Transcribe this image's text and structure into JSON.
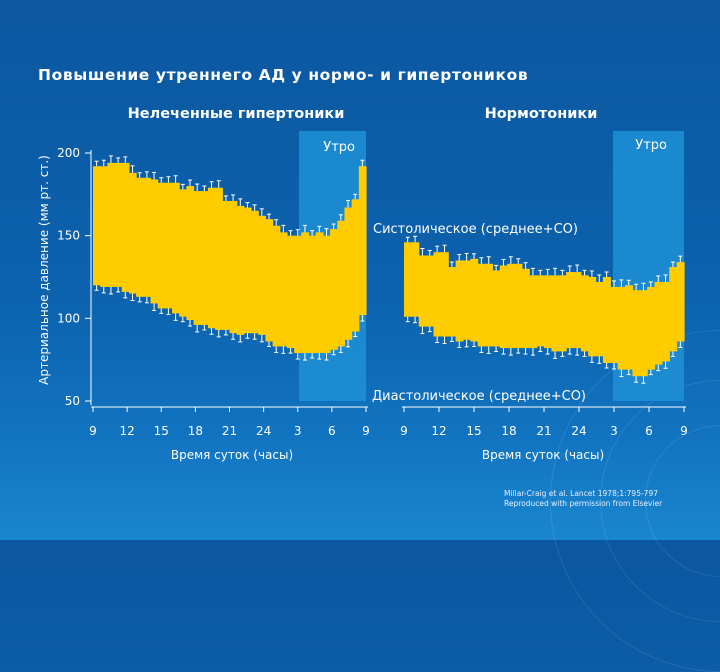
{
  "slide_title": "Повышение утреннего АД у нормо- и гипертоников",
  "citation": {
    "line1": "Millar-Craig et al. Lancet 1978;1:795-797",
    "line2": "Reproduced with permission from Elsevier"
  },
  "colors": {
    "band": "#ffcc00",
    "morning_shade": "#1e90d6",
    "background": "#0b5ba6"
  },
  "chart_data": [
    {
      "type": "area",
      "title": "Нелеченные гипертоники",
      "ylabel": "Артериальное давление (мм рт. ст.)",
      "xlabel": "Время суток (часы)",
      "x_ticks": [
        "9",
        "12",
        "15",
        "18",
        "21",
        "24",
        "3",
        "6",
        "9"
      ],
      "y_ticks": [
        200,
        150,
        100,
        50
      ],
      "ylim": [
        50,
        200
      ],
      "annotations": {
        "morning": "Утро",
        "systolic": "Систолическое (среднее+СО)",
        "diastolic": "Диастолическое (среднее+СО)"
      },
      "series": [
        {
          "name": "Систолическое (среднее+СО)",
          "values": [
            192,
            192,
            194,
            194,
            194,
            188,
            185,
            185,
            184,
            182,
            182,
            182,
            178,
            180,
            177,
            177,
            179,
            179,
            171,
            171,
            168,
            167,
            165,
            162,
            160,
            156,
            152,
            150,
            150,
            152,
            150,
            152,
            150,
            154,
            159,
            167,
            172,
            192
          ]
        },
        {
          "name": "Диастолическое (среднее+СО)",
          "values": [
            120,
            119,
            119,
            119,
            116,
            115,
            113,
            113,
            109,
            106,
            106,
            103,
            101,
            99,
            96,
            96,
            94,
            93,
            93,
            91,
            90,
            91,
            91,
            90,
            86,
            83,
            83,
            82,
            79,
            79,
            79,
            79,
            79,
            81,
            83,
            87,
            92,
            102
          ]
        }
      ]
    },
    {
      "type": "area",
      "title": "Нормотоники",
      "xlabel": "Время суток (часы)",
      "x_ticks": [
        "9",
        "12",
        "15",
        "18",
        "21",
        "24",
        "3",
        "6",
        "9"
      ],
      "ylim": [
        50,
        200
      ],
      "annotations": {
        "morning": "Утро"
      },
      "series": [
        {
          "name": "Систолическое (среднее+СО)",
          "values": [
            146,
            146,
            138,
            138,
            140,
            140,
            131,
            135,
            135,
            136,
            133,
            133,
            129,
            132,
            133,
            133,
            130,
            126,
            126,
            126,
            126,
            126,
            128,
            128,
            126,
            125,
            122,
            125,
            119,
            119,
            120,
            117,
            117,
            119,
            122,
            122,
            131,
            134
          ]
        },
        {
          "name": "Диастолическое (среднее+СО)",
          "values": [
            101,
            101,
            95,
            95,
            89,
            89,
            89,
            86,
            87,
            86,
            83,
            83,
            83,
            82,
            82,
            82,
            82,
            82,
            83,
            82,
            80,
            80,
            82,
            82,
            80,
            77,
            77,
            73,
            73,
            69,
            69,
            65,
            65,
            69,
            72,
            74,
            80,
            86
          ]
        }
      ]
    }
  ]
}
